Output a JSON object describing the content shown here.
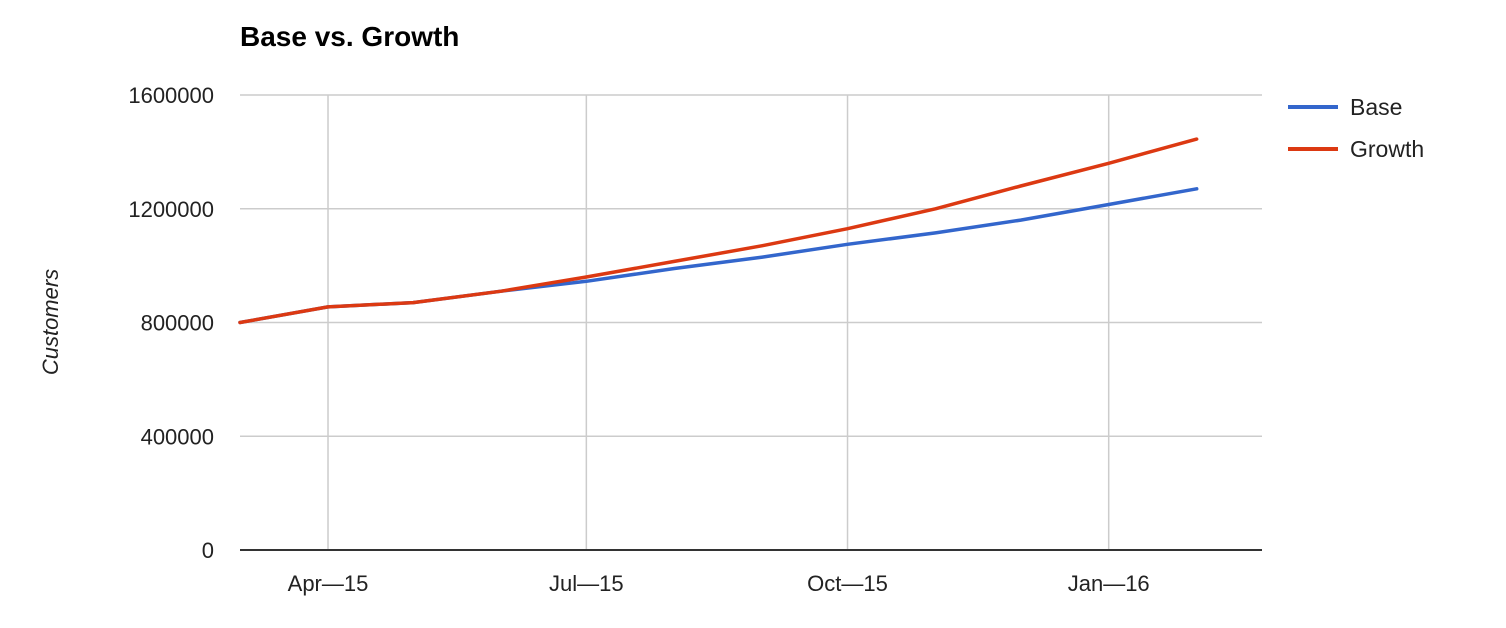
{
  "chart_data": {
    "type": "line",
    "title": "Base vs. Growth",
    "xlabel": "",
    "ylabel": "Customers",
    "x": [
      "2015-03-01",
      "2015-04-01",
      "2015-05-01",
      "2015-06-01",
      "2015-07-01",
      "2015-08-01",
      "2015-09-01",
      "2015-10-01",
      "2015-11-01",
      "2015-12-01",
      "2016-01-01",
      "2016-02-01"
    ],
    "xlim": [
      "2015-03-01",
      "2016-02-24"
    ],
    "xticks": [
      {
        "date": "2015-04-01",
        "label": "Apr—15"
      },
      {
        "date": "2015-07-01",
        "label": "Jul—15"
      },
      {
        "date": "2015-10-01",
        "label": "Oct—15"
      },
      {
        "date": "2016-01-01",
        "label": "Jan—16"
      }
    ],
    "ylim": [
      0,
      1600000
    ],
    "yticks": [
      0,
      400000,
      800000,
      1200000,
      1600000
    ],
    "grid": true,
    "legend_position": "right",
    "series": [
      {
        "name": "Base",
        "color": "#3366cc",
        "values": [
          800000,
          855000,
          870000,
          910000,
          945000,
          990000,
          1030000,
          1075000,
          1115000,
          1160000,
          1215000,
          1270000
        ]
      },
      {
        "name": "Growth",
        "color": "#dc3912",
        "values": [
          800000,
          855000,
          870000,
          910000,
          960000,
          1015000,
          1070000,
          1130000,
          1200000,
          1280000,
          1360000,
          1445000
        ]
      }
    ]
  }
}
